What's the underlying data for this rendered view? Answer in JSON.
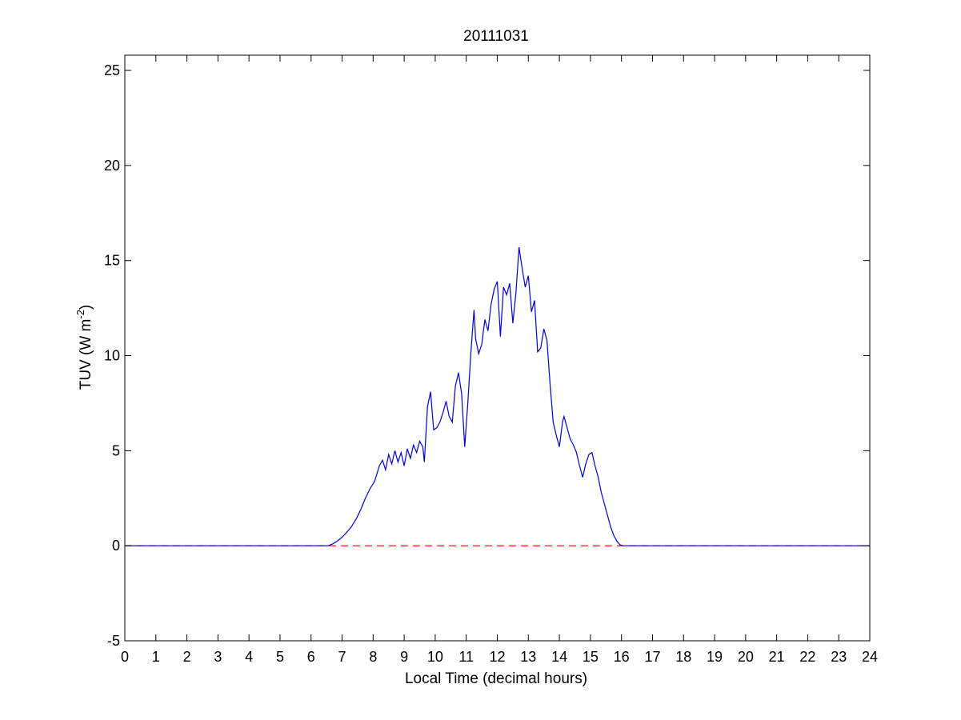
{
  "chart_data": {
    "type": "line",
    "title": "20111031",
    "xlabel": "Local Time (decimal hours)",
    "ylabel": {
      "base": "TUV (W m",
      "sup": "-2",
      "close": ")"
    },
    "xlim": [
      0,
      24
    ],
    "ylim": [
      -5,
      25.8
    ],
    "x_ticks": [
      0,
      1,
      2,
      3,
      4,
      5,
      6,
      7,
      8,
      9,
      10,
      11,
      12,
      13,
      14,
      15,
      16,
      17,
      18,
      19,
      20,
      21,
      22,
      23,
      24
    ],
    "y_ticks": [
      -5,
      0,
      5,
      10,
      15,
      20,
      25
    ],
    "grid": false,
    "legend": "none",
    "series": [
      {
        "color": "#0000cc",
        "style": "solid",
        "x": [
          0,
          6.55,
          6.7,
          6.85,
          7.0,
          7.15,
          7.3,
          7.45,
          7.6,
          7.75,
          7.9,
          8.05,
          8.2,
          8.3,
          8.4,
          8.5,
          8.6,
          8.7,
          8.8,
          8.9,
          9.0,
          9.1,
          9.2,
          9.3,
          9.4,
          9.5,
          9.6,
          9.65,
          9.75,
          9.85,
          9.95,
          10.05,
          10.15,
          10.25,
          10.35,
          10.45,
          10.55,
          10.65,
          10.75,
          10.85,
          10.95,
          11.05,
          11.15,
          11.25,
          11.3,
          11.4,
          11.5,
          11.6,
          11.7,
          11.8,
          11.9,
          12.0,
          12.1,
          12.2,
          12.3,
          12.4,
          12.5,
          12.6,
          12.7,
          12.8,
          12.9,
          13.0,
          13.1,
          13.2,
          13.3,
          13.4,
          13.5,
          13.6,
          13.7,
          13.8,
          13.9,
          14.0,
          14.1,
          14.15,
          14.25,
          14.35,
          14.45,
          14.55,
          14.65,
          14.75,
          14.85,
          14.95,
          15.05,
          15.15,
          15.25,
          15.35,
          15.45,
          15.55,
          15.65,
          15.75,
          15.85,
          15.95,
          16.05,
          16.2,
          16.35,
          16.5,
          16.65,
          16.8,
          16.95,
          17.1,
          17.25,
          17.35,
          24
        ],
        "y": [
          0,
          0,
          0.1,
          0.25,
          0.45,
          0.7,
          1.0,
          1.4,
          1.9,
          2.5,
          3.0,
          3.4,
          4.2,
          4.5,
          4.0,
          4.8,
          4.3,
          5.0,
          4.4,
          4.9,
          4.2,
          5.1,
          4.6,
          5.3,
          4.9,
          5.5,
          5.2,
          4.4,
          7.3,
          8.1,
          6.1,
          6.2,
          6.5,
          7.0,
          7.6,
          6.8,
          6.5,
          8.4,
          9.1,
          8.0,
          5.2,
          7.5,
          10.2,
          12.4,
          10.9,
          10.1,
          10.6,
          11.9,
          11.3,
          12.7,
          13.5,
          13.9,
          11.0,
          13.6,
          13.2,
          13.8,
          11.7,
          13.3,
          15.7,
          14.6,
          13.6,
          14.2,
          12.3,
          12.9,
          10.2,
          10.4,
          11.4,
          10.8,
          8.5,
          6.5,
          5.8,
          5.2,
          6.5,
          6.8,
          6.2,
          5.6,
          5.3,
          4.9,
          4.2,
          3.6,
          4.3,
          4.8,
          4.9,
          4.2,
          3.6,
          2.8,
          2.2,
          1.6,
          1.0,
          0.55,
          0.25,
          0.05,
          0,
          0,
          0,
          0,
          0,
          0,
          0,
          0,
          0,
          0,
          0
        ]
      },
      {
        "color": "#ff0000",
        "style": "dashed",
        "x": [
          0,
          24
        ],
        "y": [
          0,
          0
        ]
      }
    ]
  }
}
